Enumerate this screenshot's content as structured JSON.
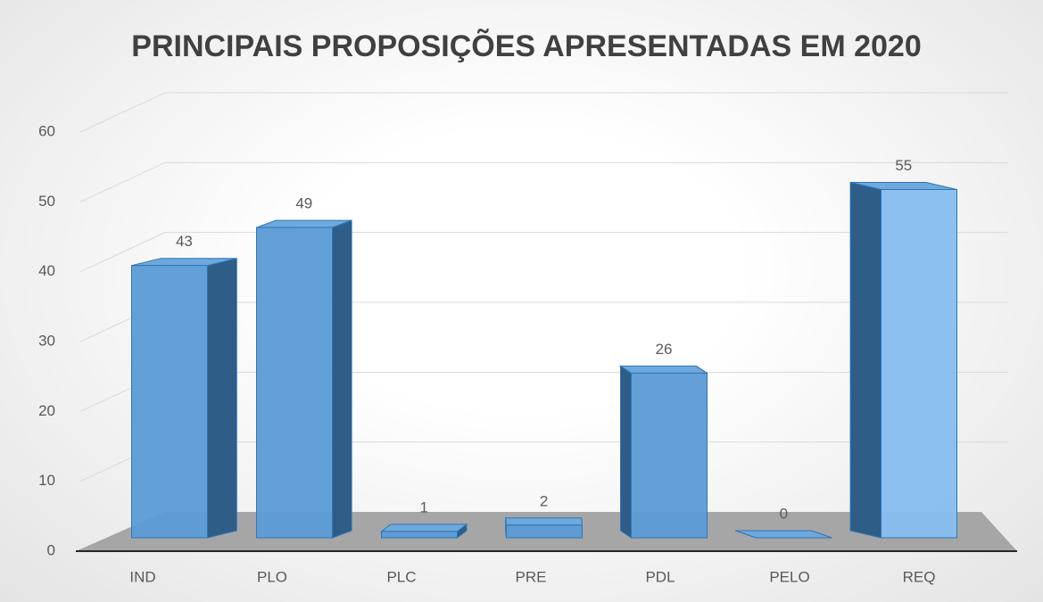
{
  "chart_data": {
    "type": "bar3d",
    "title": "PRINCIPAIS PROPOSIÇÕES APRESENTADAS EM 2020",
    "categories": [
      "IND",
      "PLO",
      "PLC",
      "PRE",
      "PDL",
      "PELO",
      "REQ"
    ],
    "values": [
      43,
      49,
      1,
      2,
      26,
      0,
      55
    ],
    "color": "#5b9bd5",
    "ylim": [
      0,
      60
    ],
    "yticks": [
      0,
      10,
      20,
      30,
      40,
      50,
      60
    ],
    "grid": true
  }
}
